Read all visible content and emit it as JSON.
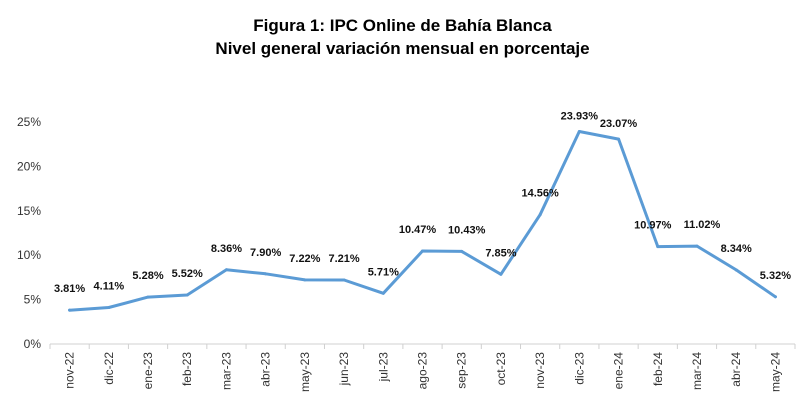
{
  "chart_data": {
    "type": "line",
    "title": "Figura 1: IPC Online de Bahía Blanca",
    "subtitle": "Nivel general variación mensual en porcentaje",
    "xlabel": "",
    "ylabel": "",
    "categories": [
      "nov-22",
      "dic-22",
      "ene-23",
      "feb-23",
      "mar-23",
      "abr-23",
      "may-23",
      "jun-23",
      "jul-23",
      "ago-23",
      "sep-23",
      "oct-23",
      "nov-23",
      "dic-23",
      "ene-24",
      "feb-24",
      "mar-24",
      "abr-24",
      "may-24"
    ],
    "values": [
      3.81,
      4.11,
      5.28,
      5.52,
      8.36,
      7.9,
      7.22,
      7.21,
      5.71,
      10.47,
      10.43,
      7.85,
      14.56,
      23.93,
      23.07,
      10.97,
      11.02,
      8.34,
      5.32
    ],
    "data_labels": [
      "3.81%",
      "4.11%",
      "5.28%",
      "5.52%",
      "8.36%",
      "7.90%",
      "7.22%",
      "7.21%",
      "5.71%",
      "10.47%",
      "10.43%",
      "7.85%",
      "14.56%",
      "23.93%",
      "23.07%",
      "10.97%",
      "11.02%",
      "8.34%",
      "5.32%"
    ],
    "yticks": [
      0,
      5,
      10,
      15,
      20,
      25
    ],
    "ytick_labels": [
      "0%",
      "5%",
      "10%",
      "15%",
      "20%",
      "25%"
    ],
    "ylim": [
      0,
      25
    ],
    "grid": false,
    "line_color": "#5b9bd5"
  }
}
